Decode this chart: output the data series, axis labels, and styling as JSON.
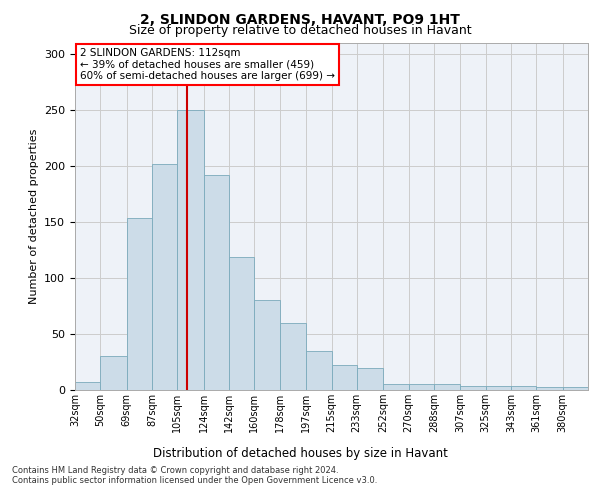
{
  "title": "2, SLINDON GARDENS, HAVANT, PO9 1HT",
  "subtitle": "Size of property relative to detached houses in Havant",
  "xlabel": "Distribution of detached houses by size in Havant",
  "ylabel": "Number of detached properties",
  "bar_color": "#ccdce8",
  "bar_edge_color": "#7aaabb",
  "grid_color": "#cccccc",
  "background_color": "#eef2f8",
  "vline_color": "#cc0000",
  "vline_x": 112,
  "annotation_text": "2 SLINDON GARDENS: 112sqm\n← 39% of detached houses are smaller (459)\n60% of semi-detached houses are larger (699) →",
  "footer_line1": "Contains HM Land Registry data © Crown copyright and database right 2024.",
  "footer_line2": "Contains public sector information licensed under the Open Government Licence v3.0.",
  "bins": [
    32,
    50,
    69,
    87,
    105,
    124,
    142,
    160,
    178,
    197,
    215,
    233,
    252,
    270,
    288,
    307,
    325,
    343,
    361,
    380,
    398
  ],
  "counts": [
    7,
    30,
    153,
    202,
    250,
    192,
    119,
    80,
    60,
    35,
    22,
    20,
    5,
    5,
    5,
    4,
    4,
    4,
    3,
    3
  ],
  "ylim": [
    0,
    310
  ],
  "yticks": [
    0,
    50,
    100,
    150,
    200,
    250,
    300
  ],
  "title_fontsize": 10,
  "subtitle_fontsize": 9,
  "ylabel_fontsize": 8,
  "xtick_fontsize": 7,
  "ytick_fontsize": 8,
  "xlabel_fontsize": 8.5,
  "footer_fontsize": 6,
  "ann_fontsize": 7.5
}
